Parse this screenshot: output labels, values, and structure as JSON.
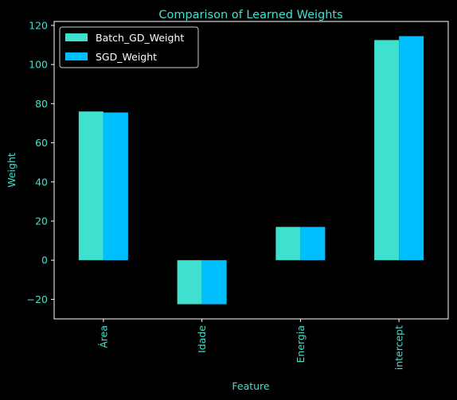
{
  "chart_data": {
    "type": "bar",
    "title": "Comparison of Learned Weights",
    "xlabel": "Feature",
    "ylabel": "Weight",
    "categories": [
      "Área",
      "Idade",
      "Energia",
      "intercept"
    ],
    "series": [
      {
        "name": "Batch_GD_Weight",
        "values": [
          76,
          -22.5,
          17,
          112.5
        ],
        "color": "#40e0d0"
      },
      {
        "name": "SGD_Weight",
        "values": [
          75.5,
          -22.5,
          17,
          114.5
        ],
        "color": "#00bfff"
      }
    ],
    "ylim": [
      -30,
      122
    ],
    "yticks": [
      -20,
      0,
      20,
      40,
      60,
      80,
      100,
      120
    ],
    "grid": false,
    "legend_position": "top-left",
    "text_color": "#40e0d0",
    "background": "#000000"
  }
}
